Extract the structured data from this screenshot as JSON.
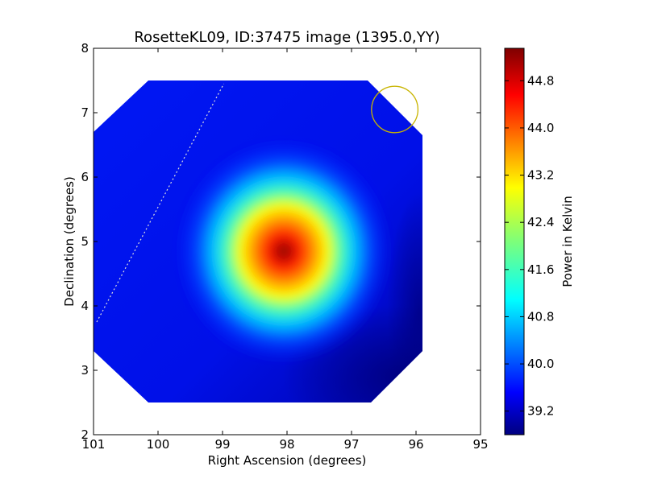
{
  "chart_data": {
    "type": "heatmap",
    "title": "RosetteKL09, ID:37475 image (1395.0,YY)",
    "xlabel": "Right Ascension (degrees)",
    "ylabel": "Declination (degrees)",
    "xlim": [
      101,
      95
    ],
    "ylim": [
      2,
      8
    ],
    "xticks": [
      101,
      100,
      99,
      98,
      97,
      96,
      95
    ],
    "yticks": [
      2,
      3,
      4,
      5,
      6,
      7,
      8
    ],
    "x_tick_labels": [
      "101",
      "100",
      "99",
      "98",
      "97",
      "96",
      "95"
    ],
    "y_tick_labels": [
      "2",
      "3",
      "4",
      "5",
      "6",
      "7",
      "8"
    ],
    "colormap": "jet",
    "colorbar": {
      "label": "Power in Kelvin",
      "min": 38.8,
      "max": 45.35,
      "ticks": [
        39.2,
        40.0,
        40.8,
        41.6,
        42.4,
        43.2,
        44.0,
        44.8
      ],
      "tick_labels": [
        "39.2",
        "40.0",
        "40.8",
        "41.6",
        "42.4",
        "43.2",
        "44.0",
        "44.8"
      ]
    },
    "image_region": {
      "description_free_polygon_ra_dec": [
        [
          100.15,
          7.5
        ],
        [
          96.75,
          7.5
        ],
        [
          95.9,
          6.65
        ],
        [
          95.9,
          3.3
        ],
        [
          96.7,
          2.5
        ],
        [
          100.15,
          2.5
        ],
        [
          101,
          3.3
        ],
        [
          101,
          6.7
        ]
      ]
    },
    "peak": {
      "ra": 98.1,
      "dec": 4.85,
      "value": 45.2
    },
    "background_value": 39.5,
    "circle": {
      "ra": 96.33,
      "dec": 7.05,
      "radius_deg": 0.36,
      "color": "#c8b400"
    },
    "dotted_line": {
      "from": [
        100.95,
        3.75
      ],
      "to": [
        98.98,
        7.45
      ],
      "color": "#dddddd"
    },
    "grid": false
  }
}
